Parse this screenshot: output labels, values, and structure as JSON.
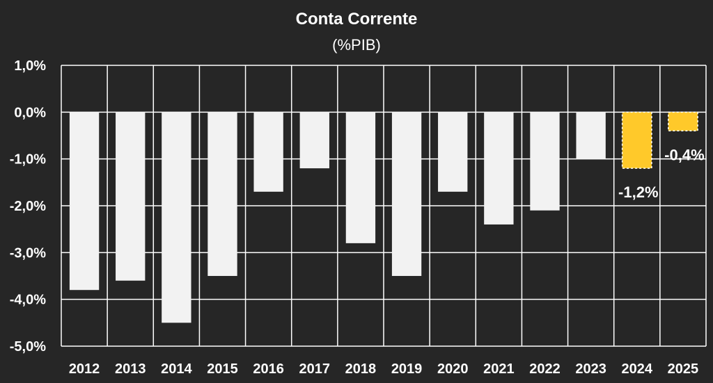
{
  "chart_data": {
    "type": "bar",
    "title": "Conta Corrente",
    "subtitle": "(%PIB)",
    "xlabel": "",
    "ylabel": "",
    "categories": [
      "2012",
      "2013",
      "2014",
      "2015",
      "2016",
      "2017",
      "2018",
      "2019",
      "2020",
      "2021",
      "2022",
      "2023",
      "2024",
      "2025"
    ],
    "values": [
      -3.8,
      -3.6,
      -4.5,
      -3.5,
      -1.7,
      -1.2,
      -2.8,
      -3.5,
      -1.7,
      -2.4,
      -2.1,
      -1.0,
      -1.2,
      -0.4
    ],
    "highlighted": [
      false,
      false,
      false,
      false,
      false,
      false,
      false,
      false,
      false,
      false,
      false,
      false,
      true,
      true
    ],
    "data_labels": {
      "12": "-1,2%",
      "13": "-0,4%"
    },
    "ylim": [
      -5.0,
      1.0
    ],
    "yticks": [
      1.0,
      0.0,
      -1.0,
      -2.0,
      -3.0,
      -4.0,
      -5.0
    ],
    "ytick_labels": [
      "1,0%",
      "0,0%",
      "-1,0%",
      "-2,0%",
      "-3,0%",
      "-4,0%",
      "-5,0%"
    ],
    "grid": true,
    "legend": "none",
    "colors": {
      "background": "#262626",
      "bar": "#f2f2f2",
      "highlight": "#ffc92a",
      "grid": "#ffffff",
      "text": "#ffffff"
    }
  }
}
